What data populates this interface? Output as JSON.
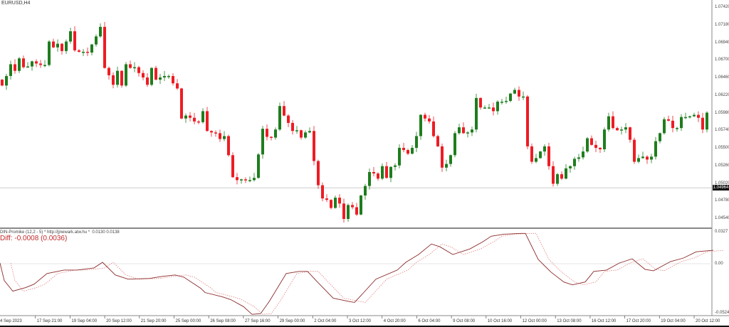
{
  "symbol": "EURUSD,H4",
  "colors": {
    "bull": "#1e7d1e",
    "bear": "#ee1c24",
    "main_line": "#8b2a2a",
    "signal_line": "#e08080",
    "grid": "#dddddd"
  },
  "chart_data": [
    {
      "type": "candlestick",
      "title": "EURUSD,H4",
      "first_open": 1.0644,
      "closes": [
        1.0636,
        1.0649,
        1.0665,
        1.0656,
        1.0673,
        1.0661,
        1.0662,
        1.0669,
        1.0666,
        1.0664,
        1.0664,
        1.0696,
        1.0688,
        1.0693,
        1.0683,
        1.0696,
        1.071,
        1.0684,
        1.0682,
        1.0682,
        1.0681,
        1.0692,
        1.0703,
        1.0716,
        1.066,
        1.065,
        1.0637,
        1.0656,
        1.0636,
        1.0665,
        1.066,
        1.0661,
        1.0653,
        1.0647,
        1.0637,
        1.066,
        1.0644,
        1.0647,
        1.0649,
        1.0649,
        1.0639,
        1.0632,
        1.0591,
        1.0595,
        1.0592,
        1.0587,
        1.0586,
        1.0601,
        1.0574,
        1.0572,
        1.0571,
        1.0563,
        1.0567,
        1.0541,
        1.0511,
        1.0507,
        1.0508,
        1.0507,
        1.0507,
        1.051,
        1.0542,
        1.0577,
        1.0566,
        1.0565,
        1.0576,
        1.0608,
        1.0595,
        1.0585,
        1.0574,
        1.0575,
        1.0565,
        1.0572,
        1.0574,
        1.0533,
        1.05,
        1.0482,
        1.048,
        1.0469,
        1.0483,
        1.0475,
        1.0454,
        1.0473,
        1.047,
        1.046,
        1.0486,
        1.0499,
        1.0518,
        1.0516,
        1.0509,
        1.0526,
        1.051,
        1.0525,
        1.0527,
        1.0551,
        1.0548,
        1.0543,
        1.0551,
        1.0567,
        1.0596,
        1.0591,
        1.0587,
        1.0567,
        1.0553,
        1.0524,
        1.0529,
        1.0541,
        1.0571,
        1.0579,
        1.0571,
        1.0572,
        1.0576,
        1.0619,
        1.0606,
        1.0606,
        1.0606,
        1.0601,
        1.0614,
        1.0614,
        1.0615,
        1.0625,
        1.063,
        1.0621,
        1.0621,
        1.0553,
        1.0532,
        1.0537,
        1.0546,
        1.0553,
        1.0526,
        1.0502,
        1.0515,
        1.0509,
        1.0523,
        1.0526,
        1.0536,
        1.0538,
        1.0546,
        1.0564,
        1.0555,
        1.0551,
        1.0549,
        1.0576,
        1.0594,
        1.0578,
        1.0575,
        1.0576,
        1.0579,
        1.0562,
        1.0532,
        1.0537,
        1.0539,
        1.0535,
        1.0539,
        1.056,
        1.0571,
        1.059,
        1.0588,
        1.0578,
        1.0578,
        1.0593,
        1.0593,
        1.0594,
        1.0596,
        1.0592,
        1.0576,
        1.0599
      ],
      "ylim": [
        1.0454,
        1.0742
      ],
      "y_ticks": [
        "1.07420",
        "1.07180",
        "1.06940",
        "1.06700",
        "1.06460",
        "1.06220",
        "1.05980",
        "1.05740",
        "1.05500",
        "1.05260",
        "1.05020",
        "1.04780",
        "1.04540"
      ],
      "current_price": "1.04964",
      "current_price_value": 1.04964
    },
    {
      "type": "line",
      "title": "DIN-Promike (12,2 - 5) * http://jjnewark.atw.hu *  0.0130 0.0138",
      "diff_label": "Diff: -0.0008 (0.0036)",
      "ylim": [
        -0.0524,
        0.0327
      ],
      "y_ticks": [
        "0.0327",
        "0.00",
        "-0.0524"
      ],
      "main": {
        "x": [
          0,
          1,
          3,
          6,
          8,
          11,
          15,
          18,
          22,
          24,
          27,
          30,
          35,
          38,
          41,
          43,
          47,
          48,
          52,
          54,
          57,
          59,
          61,
          63,
          67,
          70,
          72,
          74,
          78,
          82,
          83,
          85,
          88,
          93,
          95,
          98,
          101,
          103,
          106,
          110,
          113,
          115,
          118,
          122,
          123,
          126,
          129,
          132,
          134,
          137,
          139,
          142,
          145,
          148,
          151,
          153,
          157,
          160,
          163,
          167
        ],
        "y": [
          0.0007,
          -0.0173,
          -0.0281,
          -0.0245,
          -0.0209,
          -0.0101,
          -0.0065,
          -0.0065,
          -0.0043,
          0.0014,
          -0.0115,
          -0.0158,
          -0.0151,
          -0.013,
          -0.0115,
          -0.0137,
          -0.0252,
          -0.0295,
          -0.0338,
          -0.0367,
          -0.0439,
          -0.0518,
          -0.0511,
          -0.0389,
          -0.0101,
          -0.0079,
          -0.0079,
          -0.0173,
          -0.0353,
          -0.0389,
          -0.0396,
          -0.0302,
          -0.0158,
          -0.0065,
          0.0014,
          0.0094,
          0.0202,
          0.0173,
          0.0094,
          0.0151,
          0.0223,
          0.0281,
          0.0302,
          0.031,
          0.031,
          0.0043,
          -0.0086,
          -0.0187,
          -0.0216,
          -0.0187,
          -0.0079,
          -0.0065,
          0.0007,
          0.005,
          -0.0058,
          -0.0072,
          0.0022,
          0.0058,
          0.0122,
          0.0137
        ]
      },
      "signal_lag_bars": 2.5
    }
  ],
  "time_labels": [
    "4 Sep 2023",
    "17 Sep 21:00",
    "19 Sep 04:00",
    "20 Sep 12:00",
    "21 Sep 20:00",
    "25 Sep 00:00",
    "26 Sep 08:00",
    "27 Sep 16:00",
    "29 Sep 00:00",
    "2 Oct 04:00",
    "3 Oct 12:00",
    "4 Oct 20:00",
    "6 Oct 04:00",
    "9 Oct 08:00",
    "10 Oct 16:00",
    "12 Oct 00:00",
    "13 Oct 08:00",
    "16 Oct 12:00",
    "17 Oct 20:00",
    "19 Oct 04:00",
    "20 Oct 12:00"
  ]
}
